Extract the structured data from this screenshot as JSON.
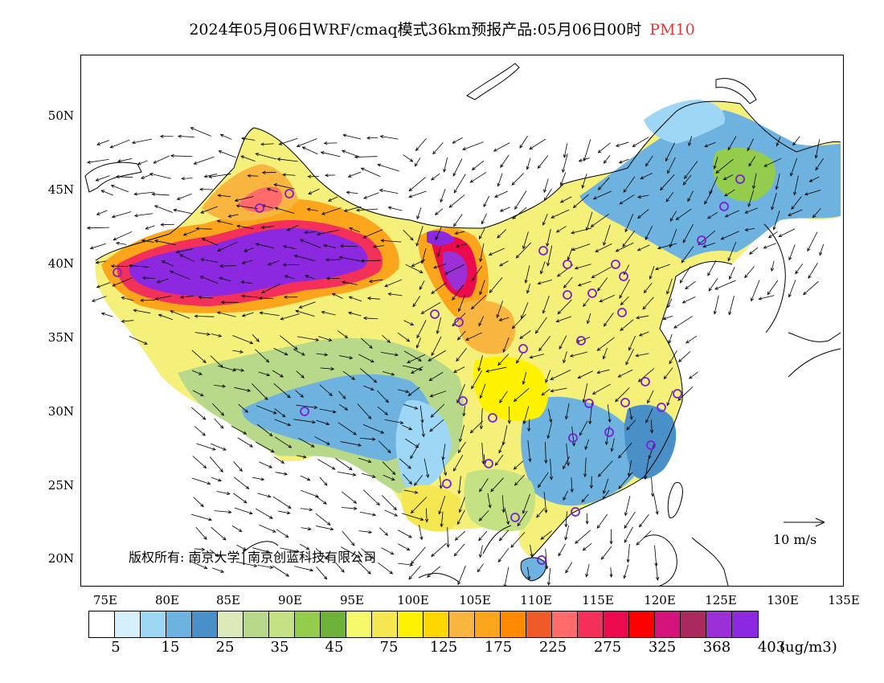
{
  "title": {
    "main": "2024年05月06日WRF/cmaq模式36km预报产品:05月06日00时",
    "pollutant": "PM10",
    "pollutant_color": "#e8383b"
  },
  "map": {
    "lat_labels": [
      "50N",
      "45N",
      "40N",
      "35N",
      "30N",
      "25N",
      "20N"
    ],
    "lon_labels": [
      "75E",
      "80E",
      "85E",
      "90E",
      "95E",
      "100E",
      "105E",
      "110E",
      "115E",
      "120E",
      "125E",
      "130E",
      "135E"
    ],
    "copyright": "版权所有: 南京大学│南京创蓝科技有限公司",
    "wind_key_label": "10 m/s"
  },
  "legend": {
    "colors": [
      "#ffffff",
      "#d5effb",
      "#9dd7f5",
      "#6eb3e0",
      "#4a90c8",
      "#dce9b8",
      "#b8d88a",
      "#c4e283",
      "#94cc4e",
      "#6fb23a",
      "#f5f86a",
      "#f4e752",
      "#fff200",
      "#ffd700",
      "#f8b640",
      "#faa51c",
      "#ff8a00",
      "#f05a28",
      "#ff6b6b",
      "#f2305a",
      "#ec0a4f",
      "#ff0000",
      "#d4147a",
      "#aa2a5e",
      "#9b30d6",
      "#8b28e0"
    ],
    "labels": [
      "5",
      "15",
      "25",
      "35",
      "45",
      "75",
      "125",
      "175",
      "225",
      "275",
      "325",
      "368",
      "403"
    ],
    "unit": "(ug/m3)"
  }
}
